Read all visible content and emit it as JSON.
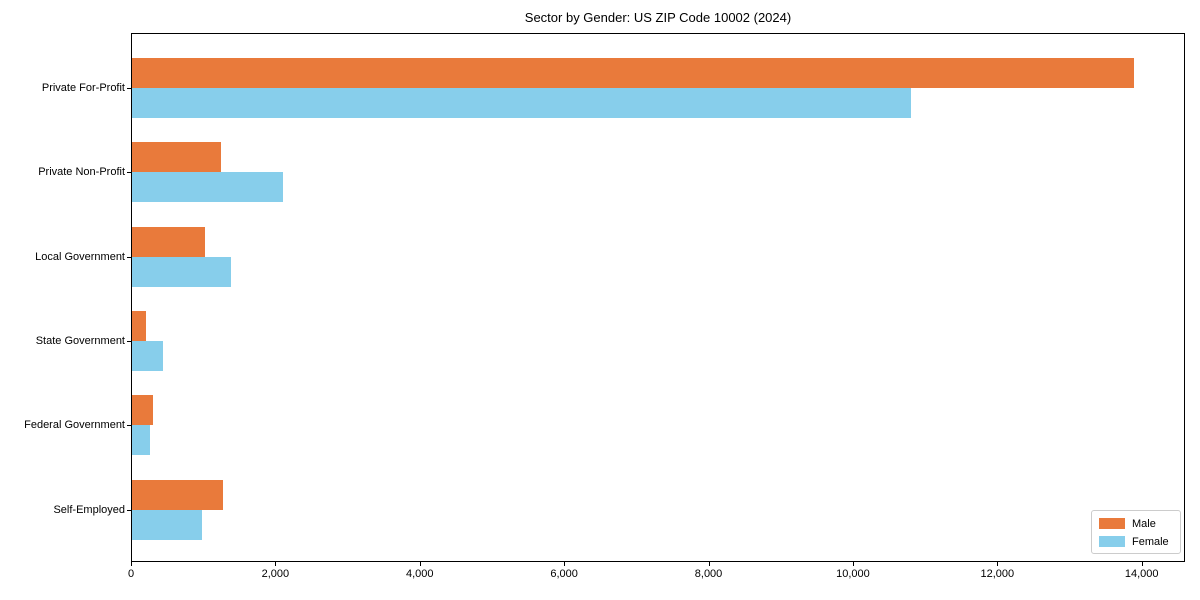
{
  "title": "Sector by Gender: US ZIP Code 10002 (2024)",
  "chart_data": {
    "type": "bar",
    "orientation": "horizontal",
    "title": "Sector by Gender: US ZIP Code 10002 (2024)",
    "categories": [
      "Private For-Profit",
      "Private Non-Profit",
      "Local Government",
      "State Government",
      "Federal Government",
      "Self-Employed"
    ],
    "series": [
      {
        "name": "Male",
        "color": "#e97a3b",
        "values": [
          13900,
          1250,
          1030,
          210,
          310,
          1270
        ]
      },
      {
        "name": "Female",
        "color": "#87ceeb",
        "values": [
          10800,
          2100,
          1380,
          450,
          260,
          990
        ]
      }
    ],
    "xlabel": "",
    "ylabel": "",
    "xlim": [
      0,
      14600
    ],
    "x_ticks": [
      0,
      2000,
      4000,
      6000,
      8000,
      10000,
      12000,
      14000
    ],
    "x_tick_labels": [
      "0",
      "2,000",
      "4,000",
      "6,000",
      "8,000",
      "10,000",
      "12,000",
      "14,000"
    ],
    "grid": false,
    "legend_position": "lower right",
    "background": "#ffffff",
    "spine_color": "#000000"
  }
}
